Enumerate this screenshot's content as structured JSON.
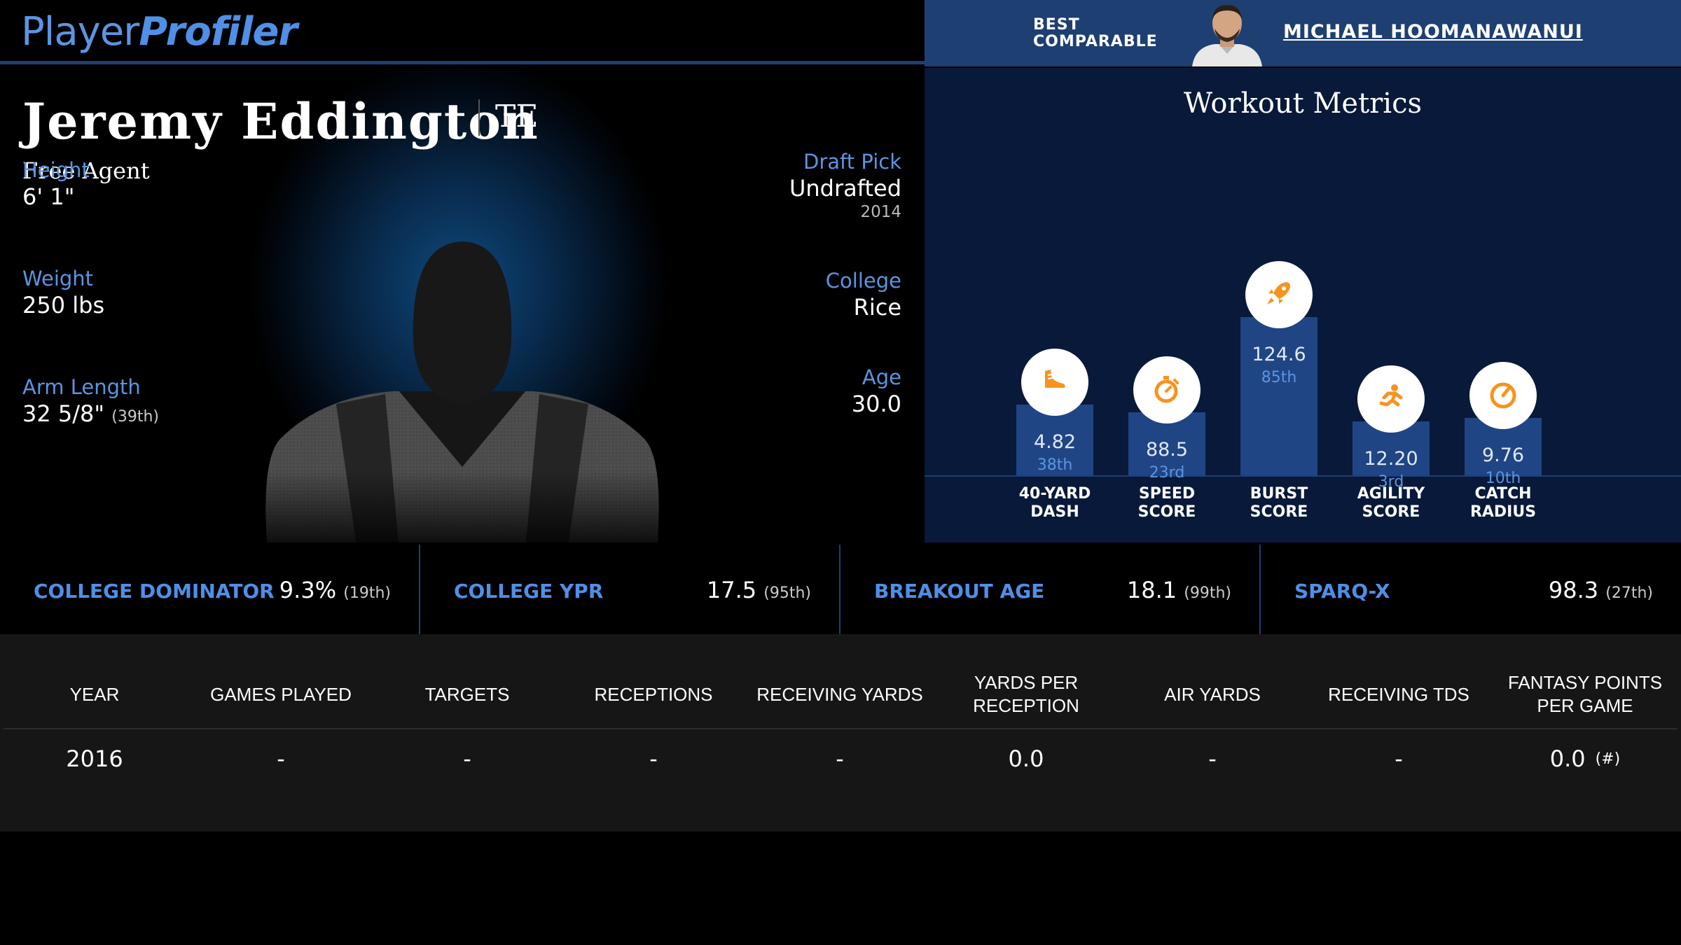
{
  "brand": {
    "part1": "Player",
    "part2": "Profiler"
  },
  "comparable": {
    "label_line1": "BEST",
    "label_line2": "COMPARABLE",
    "name": "MICHAEL HOOMANAWANUI"
  },
  "player": {
    "name": "Jeremy Eddington",
    "position": "TE",
    "team": "Free Agent"
  },
  "attributes": {
    "height": {
      "label": "Height",
      "value": "6' 1\""
    },
    "weight": {
      "label": "Weight",
      "value": "250 lbs"
    },
    "arm_length": {
      "label": "Arm Length",
      "value": "32 5/8\"",
      "pct": "(39th)"
    },
    "draft_pick": {
      "label": "Draft Pick",
      "value": "Undrafted",
      "sub": "2014"
    },
    "college": {
      "label": "College",
      "value": "Rice"
    },
    "age": {
      "label": "Age",
      "value": "30.0"
    }
  },
  "workout": {
    "title": "Workout Metrics",
    "metrics": [
      {
        "label1": "40-YARD",
        "label2": "DASH",
        "value": "4.82",
        "pct": "38th",
        "percentile": 38,
        "icon": "shoe-icon"
      },
      {
        "label1": "SPEED",
        "label2": "SCORE",
        "value": "88.5",
        "pct": "23rd",
        "percentile": 23,
        "icon": "stopwatch-icon"
      },
      {
        "label1": "BURST",
        "label2": "SCORE",
        "value": "124.6",
        "pct": "85th",
        "percentile": 85,
        "icon": "rocket-icon"
      },
      {
        "label1": "AGILITY",
        "label2": "SCORE",
        "value": "12.20",
        "pct": "3rd",
        "percentile": 3,
        "icon": "runner-icon"
      },
      {
        "label1": "CATCH",
        "label2": "RADIUS",
        "value": "9.76",
        "pct": "10th",
        "percentile": 10,
        "icon": "target-icon"
      }
    ],
    "accent_color": "#f7931e"
  },
  "stats": [
    {
      "label": "COLLEGE DOMINATOR",
      "value": "9.3%",
      "pct": "(19th)"
    },
    {
      "label": "COLLEGE YPR",
      "value": "17.5",
      "pct": "(95th)"
    },
    {
      "label": "BREAKOUT AGE",
      "value": "18.1",
      "pct": "(99th)"
    },
    {
      "label": "SPARQ-X",
      "value": "98.3",
      "pct": "(27th)"
    }
  ],
  "table": {
    "headers": [
      "YEAR",
      "GAMES PLAYED",
      "TARGETS",
      "RECEPTIONS",
      "RECEIVING YARDS",
      "YARDS PER RECEPTION",
      "AIR YARDS",
      "RECEIVING TDS",
      "FANTASY POINTS PER GAME"
    ],
    "rows": [
      {
        "year": "2016",
        "games": "-",
        "targets": "-",
        "receptions": "-",
        "rec_yards": "-",
        "ypr": "0.0",
        "air_yards": "-",
        "rec_tds": "-",
        "fppg": "0.0",
        "fppg_rank": "(#)"
      }
    ]
  }
}
